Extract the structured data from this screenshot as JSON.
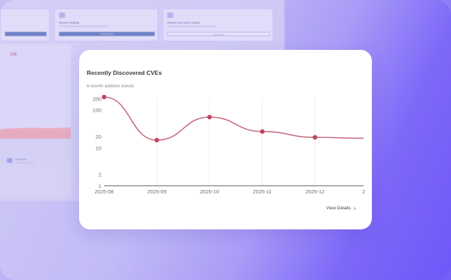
{
  "background": {
    "top_cards": [
      {
        "title": "",
        "button_color": "#6f82c8"
      },
      {
        "title": "Review Findings",
        "button_color": "#6f82c8",
        "button_label": "Find Findings"
      },
      {
        "title": "Review Your recent Scans",
        "button_color": "#dcd8f6",
        "button_label": "View Scans"
      }
    ],
    "metric_value": "148",
    "chip_label": "Other Scans"
  },
  "card": {
    "title": "Recently Discovered CVEs",
    "subtitle": "6-month addition trends",
    "view_details_label": "View Details"
  },
  "colors": {
    "line": "#c46a82",
    "marker": "#bf4660",
    "grid": "#eeedf1",
    "axis": "#6a6770"
  },
  "chart_data": {
    "type": "line",
    "title": "Recently Discovered CVEs",
    "subtitle": "6-month addition trends",
    "scale": "log",
    "x": [
      "2025-08",
      "2025-09",
      "2025-10",
      "2025-11",
      "2025-12",
      "2"
    ],
    "series": [
      {
        "values": [
          220,
          16,
          65,
          27,
          19,
          18
        ]
      }
    ],
    "ytick_labels": [
      "200",
      "100",
      "20",
      "10",
      "2",
      "1"
    ],
    "ylim": [
      1,
      220
    ],
    "grid": "vertical"
  }
}
